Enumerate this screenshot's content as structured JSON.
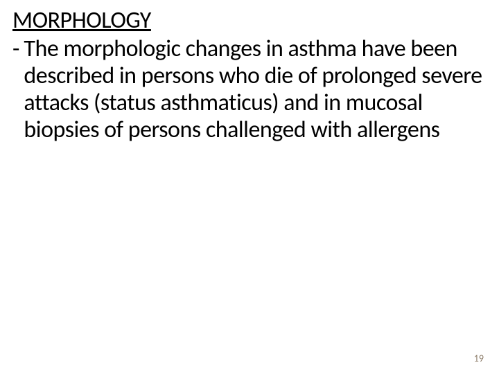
{
  "slide": {
    "background_color": "#ffffff",
    "text_color": "#000000",
    "heading": {
      "text": "MORPHOLOGY",
      "fontsize": 34,
      "font_weight": "400",
      "underline": true
    },
    "bullet": {
      "marker": "-",
      "text": " The morphologic changes in asthma have been described in persons who die of prolonged severe attacks (status asthmaticus) and in mucosal biopsies of persons challenged with allergens",
      "fontsize": 34,
      "font_weight": "400"
    },
    "page_number": {
      "text": "19",
      "fontsize": 14,
      "color": "#8a7a66"
    }
  }
}
